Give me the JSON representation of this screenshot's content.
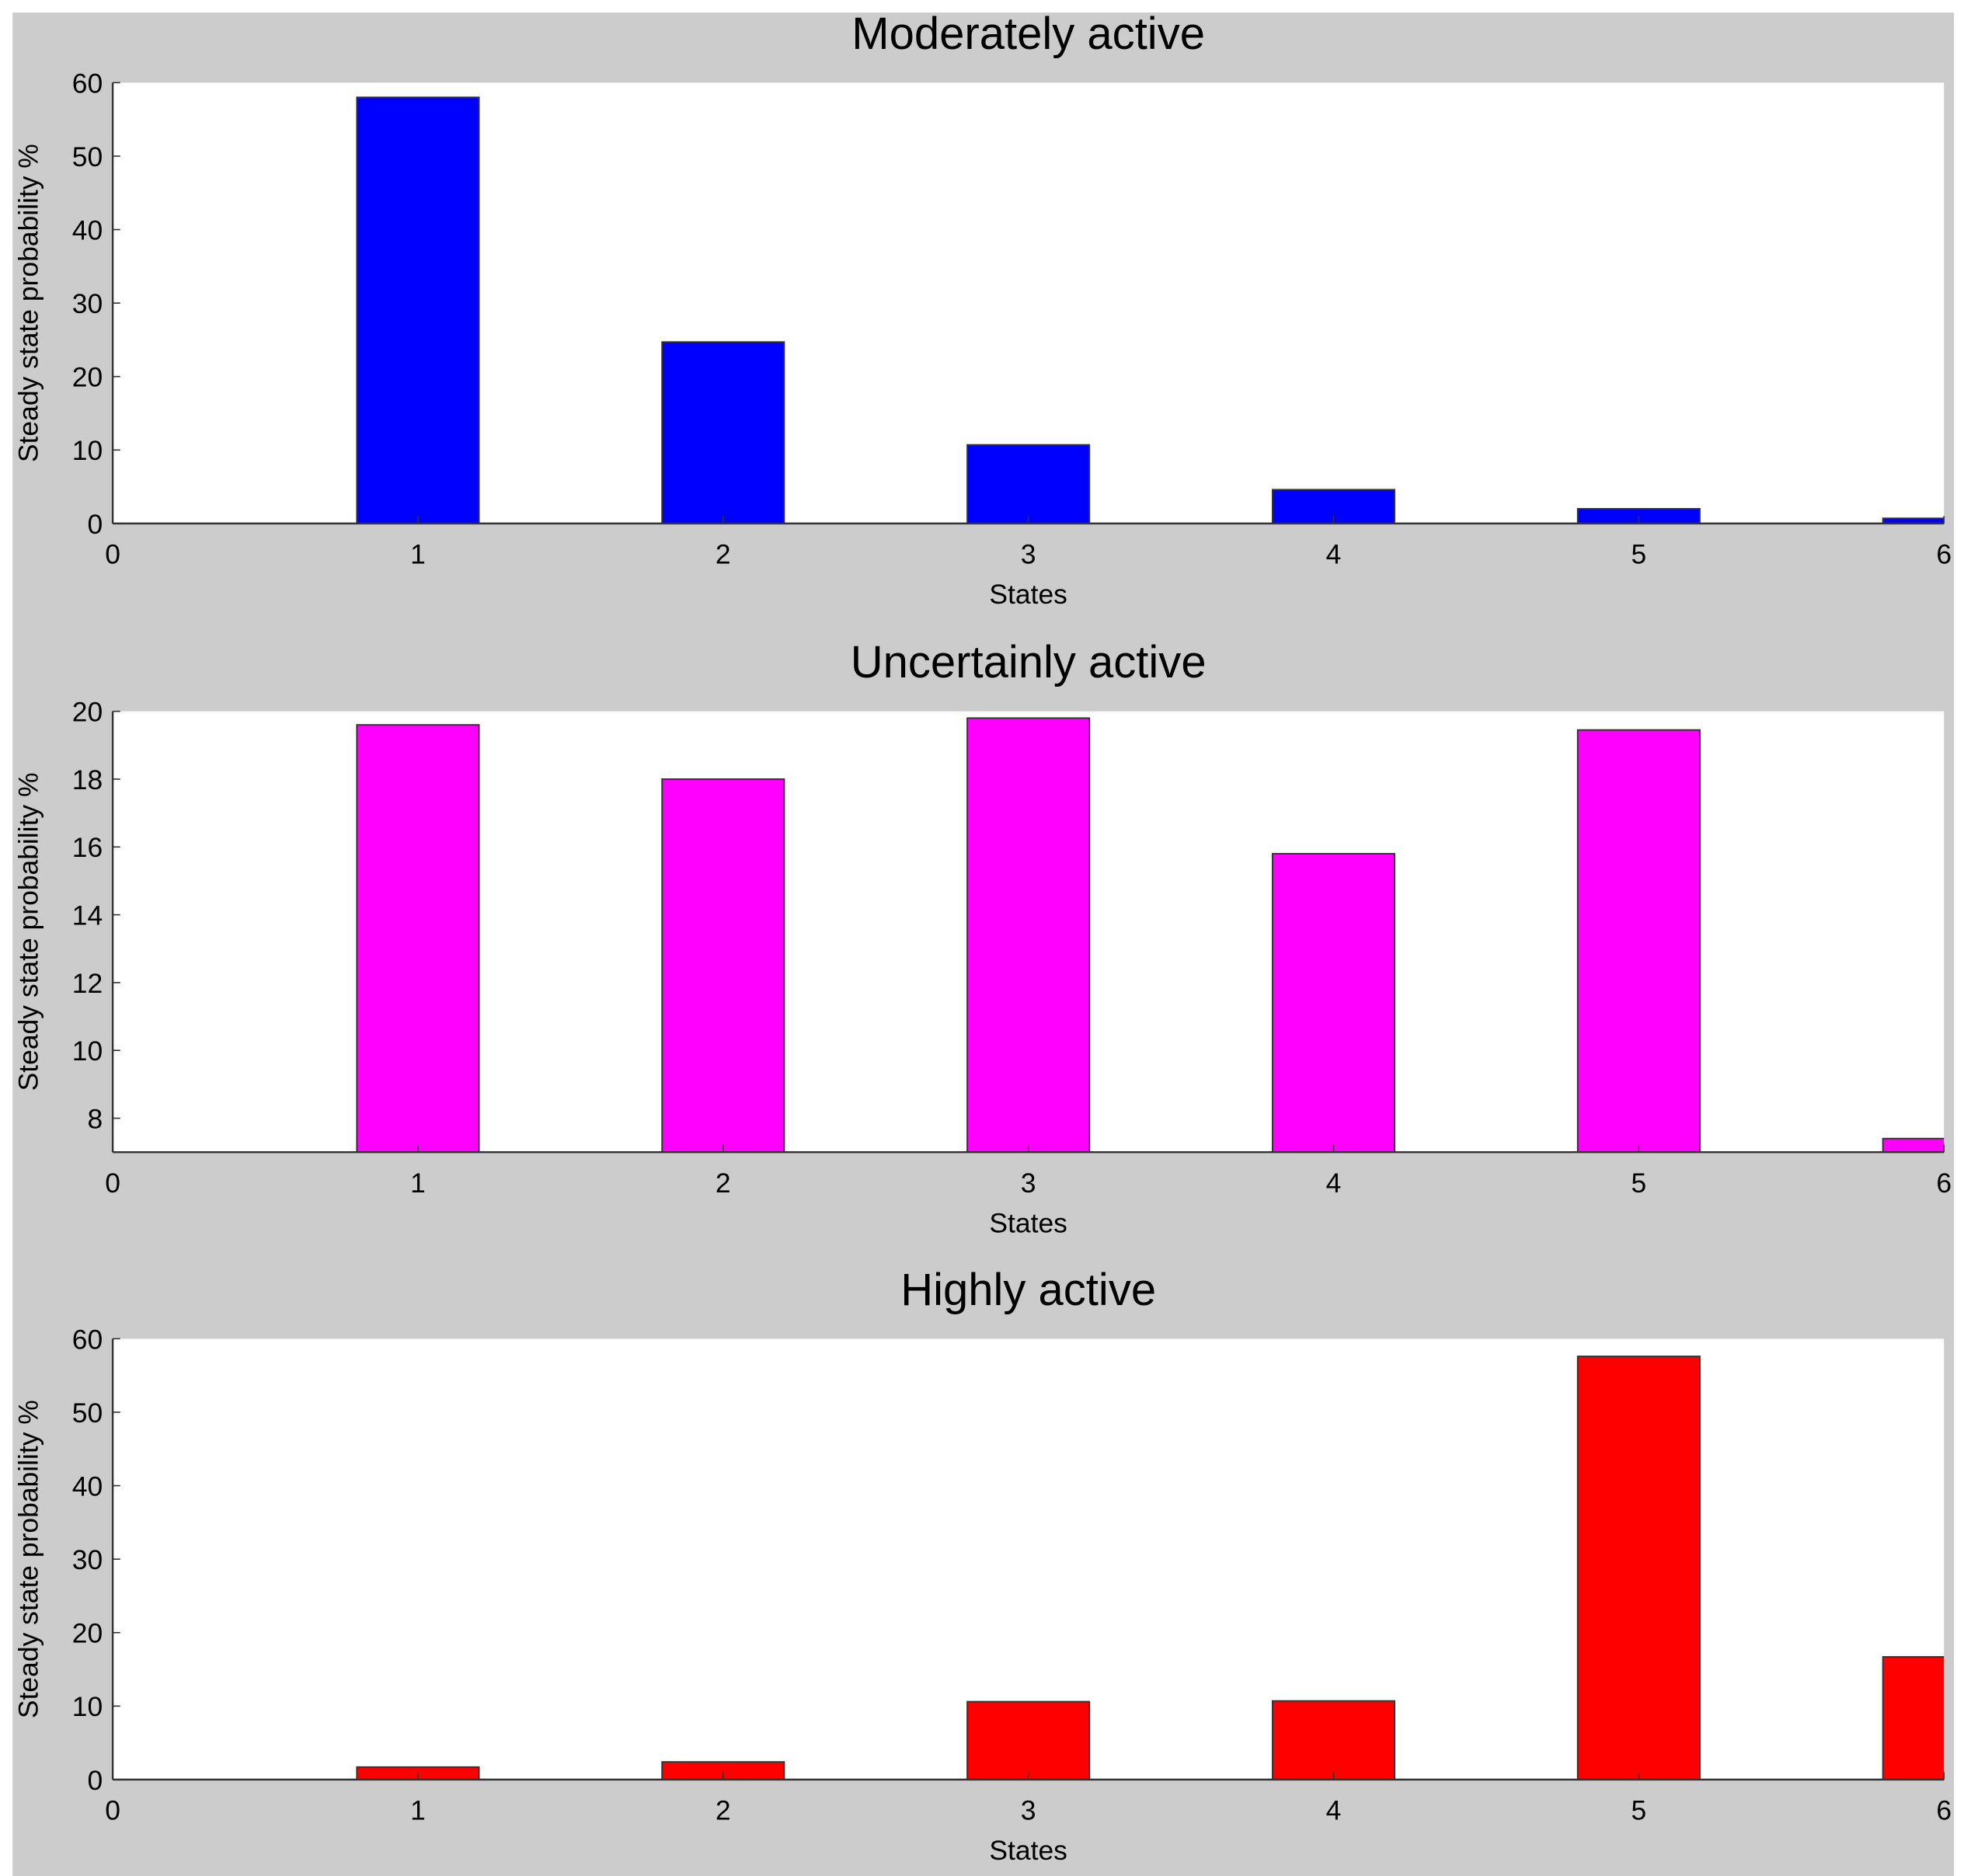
{
  "chart_data": [
    {
      "type": "bar",
      "title": "Moderately active",
      "xlabel": "States",
      "ylabel": "Steady state probability %",
      "x": [
        1,
        2,
        3,
        4,
        5,
        6
      ],
      "values": [
        58.0,
        24.7,
        10.7,
        4.6,
        2.0,
        0.7
      ],
      "xlim": [
        0,
        6
      ],
      "ylim": [
        0,
        60
      ],
      "xticks": [
        "0",
        "1",
        "2",
        "3",
        "4",
        "5",
        "6"
      ],
      "yticks": [
        "0",
        "10",
        "20",
        "30",
        "40",
        "50",
        "60"
      ],
      "color": "#0000ff",
      "grid": false
    },
    {
      "type": "bar",
      "title": "Uncertainly active",
      "xlabel": "States",
      "ylabel": "Steady state probability %",
      "x": [
        1,
        2,
        3,
        4,
        5,
        6
      ],
      "values": [
        19.6,
        18.0,
        19.8,
        15.8,
        19.45,
        7.4
      ],
      "xlim": [
        0,
        6
      ],
      "ylim": [
        7,
        20
      ],
      "xticks": [
        "0",
        "1",
        "2",
        "3",
        "4",
        "5",
        "6"
      ],
      "yticks": [
        "8",
        "10",
        "12",
        "14",
        "16",
        "18",
        "20"
      ],
      "color": "#ff00ff",
      "grid": false
    },
    {
      "type": "bar",
      "title": "Highly active",
      "xlabel": "States",
      "ylabel": "Steady state probability %",
      "x": [
        1,
        2,
        3,
        4,
        5,
        6
      ],
      "values": [
        1.7,
        2.4,
        10.6,
        10.7,
        57.6,
        16.7
      ],
      "xlim": [
        0,
        6
      ],
      "ylim": [
        0,
        60
      ],
      "xticks": [
        "0",
        "1",
        "2",
        "3",
        "4",
        "5",
        "6"
      ],
      "yticks": [
        "0",
        "10",
        "20",
        "30",
        "40",
        "50",
        "60"
      ],
      "color": "#ff0000",
      "grid": false
    }
  ]
}
